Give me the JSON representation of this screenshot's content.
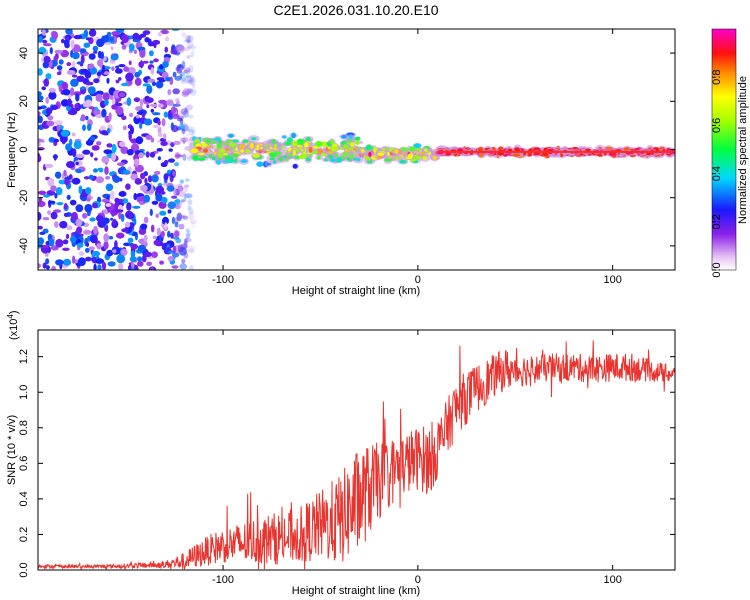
{
  "chart_data": [
    {
      "type": "heatmap",
      "title": "C2E1.2026.031.10.20.E10",
      "xlabel": "Height of straight line (km)",
      "ylabel": "Frequency (Hz)",
      "xlim": [
        -195,
        132
      ],
      "ylim": [
        -50,
        50
      ],
      "xticks": [
        -100,
        0,
        100
      ],
      "xtick_labels": [
        "-100",
        "0",
        "100"
      ],
      "yticks": [
        -40,
        -20,
        0,
        20,
        40
      ],
      "ytick_labels": [
        "-40",
        "-20",
        "0",
        "20",
        "40"
      ],
      "colorbar": {
        "label": "Normalized spectral amplitude",
        "range": [
          0,
          1
        ],
        "ticks": [
          0.0,
          0.2,
          0.4,
          0.6,
          0.8
        ],
        "tick_labels": [
          "0.0",
          "0.2",
          "0.4",
          "0.6",
          "0.8"
        ]
      },
      "features": [
        {
          "region": "noise",
          "x_range": [
            -195,
            -115
          ],
          "freq_range": [
            -50,
            50
          ],
          "amplitude_range": [
            0.05,
            0.35
          ]
        },
        {
          "region": "broad band",
          "x_range": [
            -115,
            -30
          ],
          "center_freq": 0,
          "band_halfwidth": 8,
          "amplitude_range": [
            0.2,
            0.9
          ]
        },
        {
          "region": "narrowing band",
          "x_range": [
            -30,
            10
          ],
          "center_freq": -2,
          "band_halfwidth": 4,
          "amplitude_range": [
            0.3,
            1.0
          ]
        },
        {
          "region": "narrow line",
          "x_range": [
            10,
            132
          ],
          "center_freq": -1,
          "band_halfwidth": 2,
          "amplitude_range": [
            0.8,
            1.0
          ]
        }
      ]
    },
    {
      "type": "line",
      "xlabel": "Height of straight line (km)",
      "ylabel": "SNR (10 * v/v)",
      "y_multiplier": "(x10",
      "y_multiplier_exp": "4",
      "y_multiplier_close": ")",
      "xlim": [
        -195,
        132
      ],
      "ylim": [
        0,
        1.35
      ],
      "xticks": [
        -100,
        0,
        100
      ],
      "xtick_labels": [
        "-100",
        "0",
        "100"
      ],
      "yticks": [
        0.0,
        0.2,
        0.4,
        0.6,
        0.8,
        1.0,
        1.2
      ],
      "ytick_labels": [
        "0.0",
        "0.2",
        "0.4",
        "0.6",
        "0.8",
        "1.0",
        "1.2"
      ],
      "series": [
        {
          "name": "SNR",
          "color": "#e8332e",
          "x": [
            -195,
            -160,
            -130,
            -120,
            -110,
            -100,
            -90,
            -80,
            -70,
            -60,
            -50,
            -40,
            -30,
            -20,
            -10,
            0,
            5,
            10,
            15,
            20,
            30,
            40,
            45,
            50,
            60,
            70,
            80,
            90,
            100,
            110,
            120,
            132
          ],
          "mean": [
            0.02,
            0.02,
            0.03,
            0.05,
            0.1,
            0.14,
            0.15,
            0.17,
            0.18,
            0.2,
            0.25,
            0.28,
            0.4,
            0.5,
            0.58,
            0.63,
            0.62,
            0.68,
            0.8,
            0.92,
            1.02,
            1.1,
            1.13,
            1.12,
            1.13,
            1.14,
            1.14,
            1.13,
            1.14,
            1.14,
            1.12,
            1.1
          ],
          "spread": [
            0.01,
            0.01,
            0.02,
            0.05,
            0.08,
            0.1,
            0.12,
            0.14,
            0.15,
            0.16,
            0.2,
            0.26,
            0.3,
            0.22,
            0.18,
            0.18,
            0.2,
            0.18,
            0.16,
            0.16,
            0.14,
            0.12,
            0.12,
            0.1,
            0.08,
            0.08,
            0.08,
            0.08,
            0.08,
            0.08,
            0.06,
            0.05
          ]
        }
      ]
    }
  ]
}
